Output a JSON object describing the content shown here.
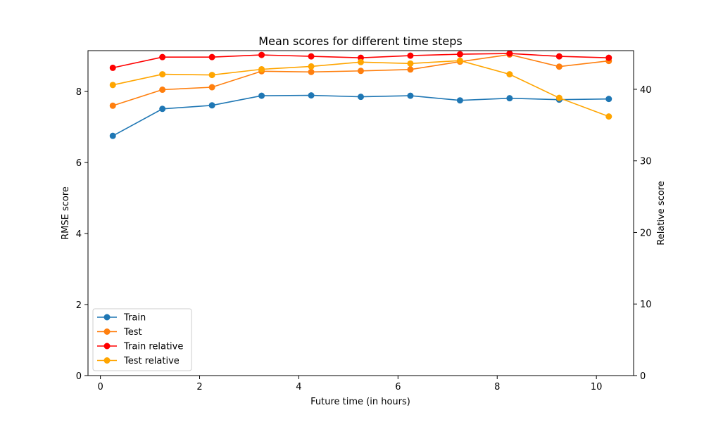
{
  "chart_data": {
    "type": "line",
    "title": "Mean scores for different time steps",
    "xlabel": "Future time (in hours)",
    "ylabel_left": "RMSE score",
    "ylabel_right": "Relative score",
    "xlim": [
      -0.25,
      10.75
    ],
    "ylim_left": [
      0,
      9.15
    ],
    "ylim_right": [
      0,
      45.4
    ],
    "xticks": [
      0,
      2,
      4,
      6,
      8,
      10
    ],
    "yticks_left": [
      0,
      2,
      4,
      6,
      8
    ],
    "yticks_right": [
      0,
      10,
      20,
      30,
      40
    ],
    "legend_position": "lower-left",
    "grid": false,
    "x": [
      0.25,
      1.25,
      2.25,
      3.25,
      4.25,
      5.25,
      6.25,
      7.25,
      8.25,
      9.25,
      10.25
    ],
    "series": [
      {
        "name": "Train",
        "axis": "left",
        "color": "#1f77b4",
        "values": [
          6.75,
          7.51,
          7.61,
          7.88,
          7.89,
          7.85,
          7.88,
          7.75,
          7.81,
          7.77,
          7.79
        ]
      },
      {
        "name": "Test",
        "axis": "left",
        "color": "#ff7f0e",
        "values": [
          7.6,
          8.05,
          8.12,
          8.57,
          8.55,
          8.58,
          8.62,
          8.84,
          9.04,
          8.7,
          8.86
        ]
      },
      {
        "name": "Train relative",
        "axis": "right",
        "color": "#ff0000",
        "values": [
          43.0,
          44.5,
          44.5,
          44.8,
          44.6,
          44.4,
          44.7,
          44.9,
          45.0,
          44.6,
          44.4
        ]
      },
      {
        "name": "Test relative",
        "axis": "right",
        "color": "#ffa500",
        "values": [
          40.6,
          42.1,
          42.0,
          42.8,
          43.2,
          43.8,
          43.6,
          44.0,
          42.1,
          38.8,
          36.2
        ]
      }
    ]
  }
}
